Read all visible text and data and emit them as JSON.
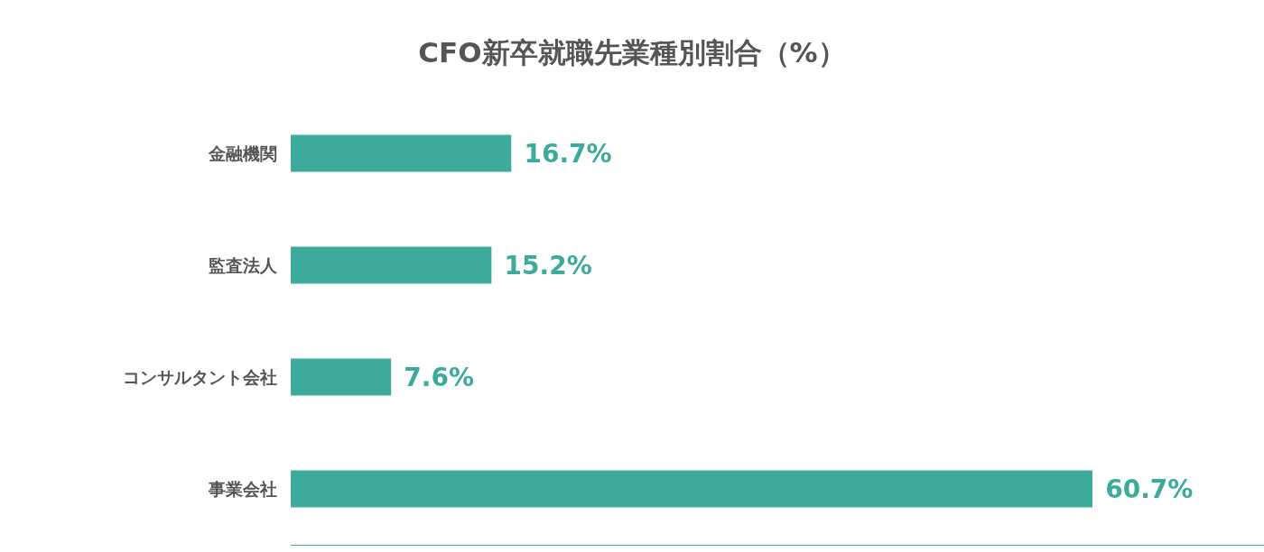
{
  "chart_data": {
    "type": "bar",
    "title": "CFO新卒就職先業種別割合（%）",
    "orientation": "horizontal",
    "categories": [
      "金融機関",
      "監査法人",
      "コンサルタント会社",
      "事業会社"
    ],
    "values": [
      16.7,
      15.2,
      7.6,
      60.7
    ],
    "color": "#3dab9b",
    "value_labels": [
      "16.7%",
      "15.2%",
      "7.6%",
      "60.7%"
    ],
    "grid": false,
    "legend": false,
    "tick_labels": "y"
  }
}
